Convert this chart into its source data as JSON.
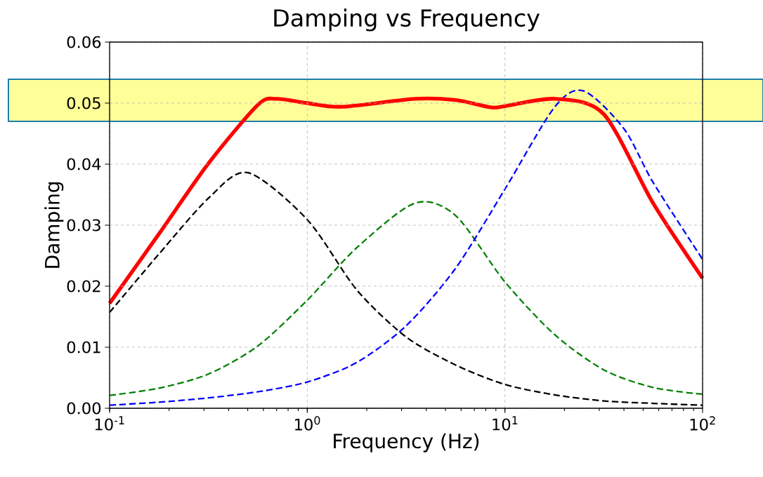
{
  "chart_data": {
    "type": "line",
    "title": "Damping vs Frequency",
    "xlabel": "Frequency (Hz)",
    "ylabel": "Damping",
    "log": "x",
    "grid": true,
    "legend": false,
    "marker": "none",
    "xlim": [
      0.1,
      100
    ],
    "ylim": [
      0,
      0.06
    ],
    "xticks": [
      {
        "value": 0.1,
        "label": "10$^{-1}$"
      },
      {
        "value": 1,
        "label": "10$^{0}$"
      },
      {
        "value": 10,
        "label": "10$^{1}$"
      },
      {
        "value": 100,
        "label": "10$^{2}$"
      }
    ],
    "yticks": [
      {
        "value": 0,
        "label": "0.00"
      },
      0.01,
      0.02,
      0.03,
      0.04,
      0.05,
      0.06
    ],
    "bands": [
      {
        "axis": "y",
        "from": 0.047,
        "to": 0.0539,
        "color": "#ffff99"
      }
    ],
    "series": [
      {
        "color": "#000000",
        "line_style": "dashed",
        "x": [
          0.1,
          0.178,
          0.316,
          0.5,
          1,
          1.78,
          3.16,
          5.62,
          10,
          17.8,
          31.6,
          56.2,
          100
        ],
        "values": [
          0.0157,
          0.0253,
          0.0344,
          0.0386,
          0.0309,
          0.0194,
          0.0117,
          0.0071,
          0.0039,
          0.0022,
          0.0012,
          0.0008,
          0.0005
        ]
      },
      {
        "color": "#008000",
        "line_style": "dashed",
        "x": [
          0.1,
          0.178,
          0.316,
          0.562,
          1,
          1.78,
          3.5,
          5.62,
          10,
          17.8,
          31.6,
          56.2,
          100
        ],
        "values": [
          0.0021,
          0.0033,
          0.0056,
          0.0102,
          0.0177,
          0.0263,
          0.0336,
          0.0316,
          0.0207,
          0.0121,
          0.0063,
          0.0034,
          0.0023
        ]
      },
      {
        "color": "#0000ff",
        "line_style": "dashed",
        "x": [
          0.1,
          0.178,
          0.316,
          0.562,
          1,
          1.78,
          3.16,
          5.62,
          10,
          17.8,
          25,
          40,
          56.2,
          100
        ],
        "values": [
          0.0005,
          0.001,
          0.0017,
          0.0027,
          0.0043,
          0.0075,
          0.0135,
          0.0229,
          0.0359,
          0.0493,
          0.052,
          0.0458,
          0.037,
          0.0244
        ]
      },
      {
        "color": "#ff0000",
        "line_style": "solid",
        "x": [
          0.1,
          0.178,
          0.316,
          0.562,
          0.7,
          1,
          1.5,
          3.5,
          5.62,
          8.5,
          10,
          18,
          31.6,
          56.2,
          100
        ],
        "values": [
          0.0172,
          0.0286,
          0.0401,
          0.0497,
          0.0507,
          0.05,
          0.0494,
          0.0507,
          0.0505,
          0.0493,
          0.0495,
          0.0507,
          0.0482,
          0.0336,
          0.0213
        ]
      }
    ]
  }
}
